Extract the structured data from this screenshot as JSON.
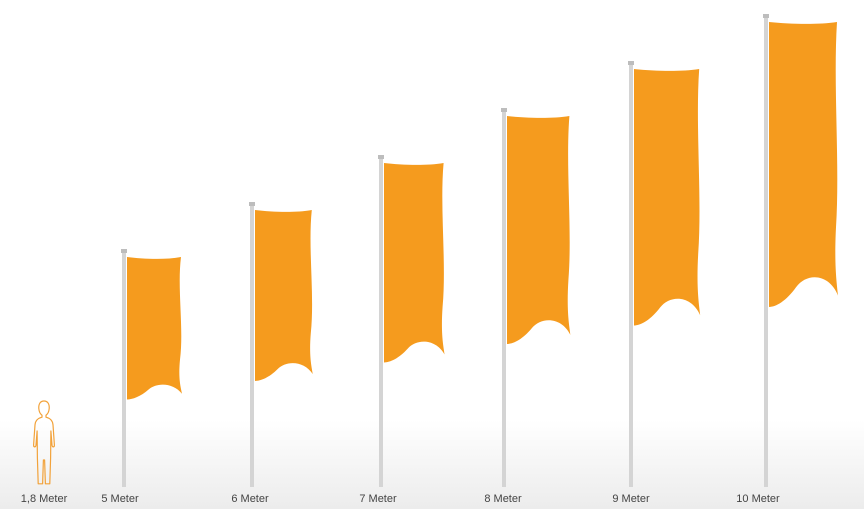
{
  "person": {
    "label": "1,8 Meter",
    "icon": "person-silhouette-icon",
    "height_m": 1.8
  },
  "flags": [
    {
      "label": "5 Meter",
      "height_m": 5
    },
    {
      "label": "6 Meter",
      "height_m": 6
    },
    {
      "label": "7 Meter",
      "height_m": 7
    },
    {
      "label": "8 Meter",
      "height_m": 8
    },
    {
      "label": "9 Meter",
      "height_m": 9
    },
    {
      "label": "10 Meter",
      "height_m": 10
    }
  ],
  "colors": {
    "flag": "#F59B1E",
    "pole": "#D4D4D4",
    "person_outline": "#F2A23A",
    "label": "#444444"
  }
}
